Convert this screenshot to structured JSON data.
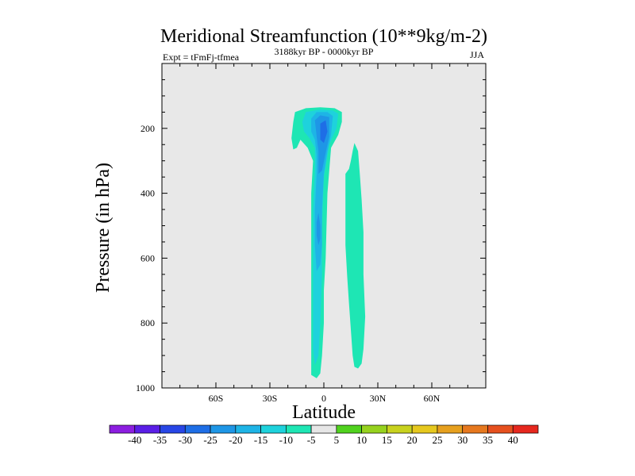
{
  "chart_data": {
    "type": "filled-contour",
    "title": "Meridional Streamfunction (10**9kg/m-2)",
    "left_string": "Expt = tFmFj-tfmea",
    "center_string": "3188kyr BP - 0000kyr BP",
    "right_string": "JJA",
    "xlabel": "Latitude",
    "ylabel": "Pressure (in hPa)",
    "xlim": [
      -90,
      90
    ],
    "ylim": [
      1000,
      0
    ],
    "x_ticks": [
      {
        "value": -60,
        "label": "60S"
      },
      {
        "value": -30,
        "label": "30S"
      },
      {
        "value": 0,
        "label": "0"
      },
      {
        "value": 30,
        "label": "30N"
      },
      {
        "value": 60,
        "label": "60N"
      }
    ],
    "y_ticks": [
      {
        "value": 200,
        "label": "200"
      },
      {
        "value": 400,
        "label": "400"
      },
      {
        "value": 600,
        "label": "600"
      },
      {
        "value": 800,
        "label": "800"
      },
      {
        "value": 1000,
        "label": "1000"
      }
    ],
    "colorbar": {
      "levels": [
        "-40",
        "-35",
        "-30",
        "-25",
        "-20",
        "-15",
        "-10",
        "-5",
        "5",
        "10",
        "15",
        "20",
        "25",
        "30",
        "35",
        "40"
      ],
      "colors": [
        "#8c1ee0",
        "#5a1ee6",
        "#2846e6",
        "#1e6ee6",
        "#1e96e6",
        "#1eb4e6",
        "#1ed2dc",
        "#1ee6b4",
        "#e6e6e6",
        "#50d21e",
        "#96d21e",
        "#c8d21e",
        "#e6c81e",
        "#e6a01e",
        "#e6781e",
        "#e6501e",
        "#e6281e"
      ]
    },
    "regions": [
      {
        "name": "negative-cell",
        "fill": "#1ee6b4",
        "points": [
          [
            -18,
            230
          ],
          [
            -17,
            180
          ],
          [
            -16,
            150
          ],
          [
            -10,
            138
          ],
          [
            -2,
            135
          ],
          [
            6,
            138
          ],
          [
            10,
            150
          ],
          [
            10,
            180
          ],
          [
            8,
            220
          ],
          [
            4,
            260
          ],
          [
            2,
            400
          ],
          [
            1,
            600
          ],
          [
            0,
            700
          ],
          [
            0,
            800
          ],
          [
            -1,
            900
          ],
          [
            -2,
            955
          ],
          [
            -4,
            970
          ],
          [
            -7,
            960
          ],
          [
            -7,
            850
          ],
          [
            -7,
            600
          ],
          [
            -7,
            400
          ],
          [
            -6,
            300
          ],
          [
            -9,
            260
          ],
          [
            -13,
            235
          ],
          [
            -15,
            260
          ],
          [
            -17,
            265
          ]
        ]
      },
      {
        "name": "negative-cell",
        "fill": "#1ed2dc",
        "points": [
          [
            -12,
            180
          ],
          [
            -10,
            150
          ],
          [
            -2,
            142
          ],
          [
            5,
            145
          ],
          [
            8,
            155
          ],
          [
            7,
            200
          ],
          [
            3,
            250
          ],
          [
            0,
            350
          ],
          [
            -1,
            500
          ],
          [
            -1,
            650
          ],
          [
            -2,
            800
          ],
          [
            -3,
            900
          ],
          [
            -5,
            930
          ],
          [
            -6,
            880
          ],
          [
            -6,
            750
          ],
          [
            -6,
            600
          ],
          [
            -6,
            450
          ],
          [
            -5,
            330
          ],
          [
            -5,
            260
          ],
          [
            -8,
            230
          ],
          [
            -11,
            210
          ]
        ]
      },
      {
        "name": "negative-cell",
        "fill": "#1eb4e6",
        "points": [
          [
            -7,
            170
          ],
          [
            -4,
            150
          ],
          [
            2,
            150
          ],
          [
            5,
            162
          ],
          [
            4,
            220
          ],
          [
            2,
            270
          ],
          [
            0,
            340
          ],
          [
            -1,
            450
          ],
          [
            -1,
            560
          ],
          [
            -2,
            620
          ],
          [
            -4,
            640
          ],
          [
            -5,
            560
          ],
          [
            -5,
            450
          ],
          [
            -4,
            340
          ],
          [
            -4,
            280
          ],
          [
            -5,
            235
          ],
          [
            -7,
            210
          ]
        ]
      },
      {
        "name": "negative-cell",
        "fill": "#1e96e6",
        "points": [
          [
            -5,
            175
          ],
          [
            -2,
            160
          ],
          [
            3,
            165
          ],
          [
            3,
            225
          ],
          [
            1,
            275
          ],
          [
            -1,
            330
          ],
          [
            -3,
            340
          ],
          [
            -3,
            270
          ],
          [
            -4,
            225
          ]
        ]
      },
      {
        "name": "negative-cell",
        "fill": "#1e96e6",
        "points": [
          [
            -3,
            460
          ],
          [
            -2,
            500
          ],
          [
            -2,
            540
          ],
          [
            -3,
            560
          ],
          [
            -4,
            530
          ],
          [
            -4,
            490
          ]
        ]
      },
      {
        "name": "negative-cell",
        "fill": "#1e6ee6",
        "points": [
          [
            -2,
            185
          ],
          [
            1,
            175
          ],
          [
            2,
            210
          ],
          [
            0,
            245
          ],
          [
            -2,
            235
          ]
        ]
      },
      {
        "name": "positive-cell",
        "fill": "#1ee6b4",
        "points": [
          [
            17,
            245
          ],
          [
            19,
            270
          ],
          [
            20,
            340
          ],
          [
            21,
            420
          ],
          [
            22,
            520
          ],
          [
            22,
            650
          ],
          [
            23,
            780
          ],
          [
            22,
            880
          ],
          [
            21,
            925
          ],
          [
            19,
            940
          ],
          [
            17,
            935
          ],
          [
            16,
            900
          ],
          [
            15,
            820
          ],
          [
            14,
            740
          ],
          [
            13,
            660
          ],
          [
            12,
            560
          ],
          [
            12,
            460
          ],
          [
            12,
            380
          ],
          [
            12,
            340
          ],
          [
            14,
            325
          ],
          [
            15,
            300
          ],
          [
            16,
            270
          ]
        ]
      }
    ]
  }
}
